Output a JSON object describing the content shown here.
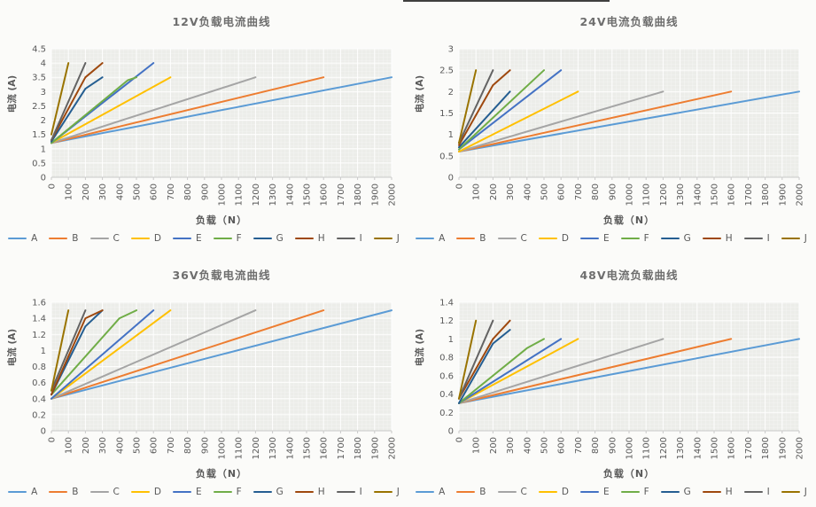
{
  "page": {
    "background": "#fbfbf9",
    "plot_area_fill": "#ECEDE9",
    "gridline_color": "#FFFFFF",
    "axis_line_color": "#C9C9C9",
    "text_color": "#595959"
  },
  "series_colors": {
    "A": "#5B9BD5",
    "B": "#ED7D31",
    "C": "#A5A5A5",
    "D": "#FFC000",
    "E": "#4472C4",
    "F": "#70AD47",
    "G": "#255E91",
    "H": "#9E480E",
    "I": "#636363",
    "J": "#997300"
  },
  "chart_data": [
    {
      "type": "line",
      "title": "12V负载电流曲线",
      "xlabel": "负载（N）",
      "ylabel": "电流 (A)",
      "x_range": [
        0,
        2000
      ],
      "x_tick_step": 100,
      "y_range": [
        0,
        4.5
      ],
      "y_tick_step": 0.5,
      "grid": true,
      "legend_position": "bottom",
      "series": [
        {
          "name": "A",
          "color": "#5B9BD5",
          "points": [
            [
              0,
              1.2
            ],
            [
              2000,
              3.5
            ]
          ]
        },
        {
          "name": "B",
          "color": "#ED7D31",
          "points": [
            [
              0,
              1.2
            ],
            [
              1600,
              3.5
            ]
          ]
        },
        {
          "name": "C",
          "color": "#A5A5A5",
          "points": [
            [
              0,
              1.2
            ],
            [
              1200,
              3.5
            ]
          ]
        },
        {
          "name": "D",
          "color": "#FFC000",
          "points": [
            [
              0,
              1.2
            ],
            [
              700,
              3.5
            ]
          ]
        },
        {
          "name": "E",
          "color": "#4472C4",
          "points": [
            [
              0,
              1.2
            ],
            [
              450,
              3.3
            ],
            [
              600,
              4.0
            ]
          ]
        },
        {
          "name": "F",
          "color": "#70AD47",
          "points": [
            [
              0,
              1.2
            ],
            [
              450,
              3.4
            ],
            [
              500,
              3.5
            ]
          ]
        },
        {
          "name": "G",
          "color": "#255E91",
          "points": [
            [
              0,
              1.25
            ],
            [
              200,
              3.1
            ],
            [
              300,
              3.5
            ]
          ]
        },
        {
          "name": "H",
          "color": "#9E480E",
          "points": [
            [
              0,
              1.3
            ],
            [
              200,
              3.5
            ],
            [
              300,
              4.0
            ]
          ]
        },
        {
          "name": "I",
          "color": "#636363",
          "points": [
            [
              0,
              1.3
            ],
            [
              200,
              4.0
            ]
          ]
        },
        {
          "name": "J",
          "color": "#997300",
          "points": [
            [
              0,
              1.5
            ],
            [
              100,
              4.0
            ]
          ]
        }
      ]
    },
    {
      "type": "line",
      "title": "24V电流负载曲线",
      "xlabel": "负载（N）",
      "ylabel": "电流 (A)",
      "x_range": [
        0,
        2000
      ],
      "x_tick_step": 100,
      "y_range": [
        0,
        3
      ],
      "y_tick_step": 0.5,
      "grid": true,
      "legend_position": "bottom",
      "series": [
        {
          "name": "A",
          "color": "#5B9BD5",
          "points": [
            [
              0,
              0.6
            ],
            [
              2000,
              2.0
            ]
          ]
        },
        {
          "name": "B",
          "color": "#ED7D31",
          "points": [
            [
              0,
              0.6
            ],
            [
              1600,
              2.0
            ]
          ]
        },
        {
          "name": "C",
          "color": "#A5A5A5",
          "points": [
            [
              0,
              0.6
            ],
            [
              1200,
              2.0
            ]
          ]
        },
        {
          "name": "D",
          "color": "#FFC000",
          "points": [
            [
              0,
              0.6
            ],
            [
              700,
              2.0
            ]
          ]
        },
        {
          "name": "E",
          "color": "#4472C4",
          "points": [
            [
              0,
              0.65
            ],
            [
              600,
              2.5
            ]
          ]
        },
        {
          "name": "F",
          "color": "#70AD47",
          "points": [
            [
              0,
              0.65
            ],
            [
              500,
              2.5
            ]
          ]
        },
        {
          "name": "G",
          "color": "#255E91",
          "points": [
            [
              0,
              0.7
            ],
            [
              300,
              2.0
            ]
          ]
        },
        {
          "name": "H",
          "color": "#9E480E",
          "points": [
            [
              0,
              0.75
            ],
            [
              200,
              2.15
            ],
            [
              300,
              2.5
            ]
          ]
        },
        {
          "name": "I",
          "color": "#636363",
          "points": [
            [
              0,
              0.8
            ],
            [
              200,
              2.5
            ]
          ]
        },
        {
          "name": "J",
          "color": "#997300",
          "points": [
            [
              0,
              0.8
            ],
            [
              100,
              2.5
            ]
          ]
        }
      ]
    },
    {
      "type": "line",
      "title": "36V负载电流曲线",
      "xlabel": "负载（N）",
      "ylabel": "电流 (A)",
      "x_range": [
        0,
        2000
      ],
      "x_tick_step": 100,
      "y_range": [
        0,
        1.6
      ],
      "y_tick_step": 0.2,
      "grid": true,
      "legend_position": "bottom",
      "series": [
        {
          "name": "A",
          "color": "#5B9BD5",
          "points": [
            [
              0,
              0.4
            ],
            [
              2000,
              1.5
            ]
          ]
        },
        {
          "name": "B",
          "color": "#ED7D31",
          "points": [
            [
              0,
              0.4
            ],
            [
              1600,
              1.5
            ]
          ]
        },
        {
          "name": "C",
          "color": "#A5A5A5",
          "points": [
            [
              0,
              0.4
            ],
            [
              1200,
              1.5
            ]
          ]
        },
        {
          "name": "D",
          "color": "#FFC000",
          "points": [
            [
              0,
              0.4
            ],
            [
              700,
              1.5
            ]
          ]
        },
        {
          "name": "E",
          "color": "#4472C4",
          "points": [
            [
              0,
              0.4
            ],
            [
              600,
              1.5
            ]
          ]
        },
        {
          "name": "F",
          "color": "#70AD47",
          "points": [
            [
              0,
              0.45
            ],
            [
              400,
              1.4
            ],
            [
              500,
              1.5
            ]
          ]
        },
        {
          "name": "G",
          "color": "#255E91",
          "points": [
            [
              0,
              0.45
            ],
            [
              200,
              1.3
            ],
            [
              300,
              1.5
            ]
          ]
        },
        {
          "name": "H",
          "color": "#9E480E",
          "points": [
            [
              0,
              0.45
            ],
            [
              200,
              1.4
            ],
            [
              300,
              1.5
            ]
          ]
        },
        {
          "name": "I",
          "color": "#636363",
          "points": [
            [
              0,
              0.5
            ],
            [
              200,
              1.5
            ]
          ]
        },
        {
          "name": "J",
          "color": "#997300",
          "points": [
            [
              0,
              0.5
            ],
            [
              100,
              1.5
            ]
          ]
        }
      ]
    },
    {
      "type": "line",
      "title": "48V电流负载曲线",
      "xlabel": "负载（N）",
      "ylabel": "电流 (A)",
      "x_range": [
        0,
        2000
      ],
      "x_tick_step": 100,
      "y_range": [
        0,
        1.4
      ],
      "y_tick_step": 0.2,
      "grid": true,
      "legend_position": "bottom",
      "series": [
        {
          "name": "A",
          "color": "#5B9BD5",
          "points": [
            [
              0,
              0.3
            ],
            [
              2000,
              1.0
            ]
          ]
        },
        {
          "name": "B",
          "color": "#ED7D31",
          "points": [
            [
              0,
              0.3
            ],
            [
              1600,
              1.0
            ]
          ]
        },
        {
          "name": "C",
          "color": "#A5A5A5",
          "points": [
            [
              0,
              0.3
            ],
            [
              1200,
              1.0
            ]
          ]
        },
        {
          "name": "D",
          "color": "#FFC000",
          "points": [
            [
              0,
              0.3
            ],
            [
              700,
              1.0
            ]
          ]
        },
        {
          "name": "E",
          "color": "#4472C4",
          "points": [
            [
              0,
              0.3
            ],
            [
              600,
              1.0
            ]
          ]
        },
        {
          "name": "F",
          "color": "#70AD47",
          "points": [
            [
              0,
              0.3
            ],
            [
              400,
              0.9
            ],
            [
              500,
              1.0
            ]
          ]
        },
        {
          "name": "G",
          "color": "#255E91",
          "points": [
            [
              0,
              0.3
            ],
            [
              200,
              0.95
            ],
            [
              300,
              1.1
            ]
          ]
        },
        {
          "name": "H",
          "color": "#9E480E",
          "points": [
            [
              0,
              0.35
            ],
            [
              200,
              1.0
            ],
            [
              300,
              1.2
            ]
          ]
        },
        {
          "name": "I",
          "color": "#636363",
          "points": [
            [
              0,
              0.35
            ],
            [
              200,
              1.2
            ]
          ]
        },
        {
          "name": "J",
          "color": "#997300",
          "points": [
            [
              0,
              0.35
            ],
            [
              100,
              1.2
            ]
          ]
        }
      ]
    }
  ]
}
